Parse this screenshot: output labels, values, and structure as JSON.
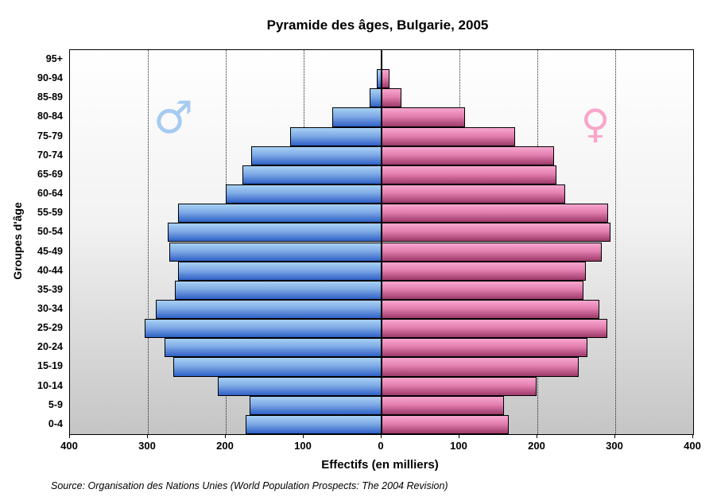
{
  "title": "Pyramide des âges, Bulgarie, 2005",
  "source": "Source: Organisation des Nations Unies (World Population Prospects: The 2004 Revision)",
  "chart_data": {
    "type": "bar",
    "subtype": "population-pyramid",
    "title": "Pyramide des âges, Bulgarie, 2005",
    "xlabel": "Effectifs (en milliers)",
    "ylabel": "Groupes d'âge",
    "categories_top_to_bottom": [
      "95+",
      "90-94",
      "85-89",
      "80-84",
      "75-79",
      "70-74",
      "65-69",
      "60-64",
      "55-59",
      "50-54",
      "45-49",
      "40-44",
      "35-39",
      "30-34",
      "25-29",
      "20-24",
      "15-19",
      "10-14",
      "5-9",
      "0-4"
    ],
    "series": [
      {
        "name": "male",
        "side": "left",
        "symbol": "♂",
        "values": [
          1,
          6,
          15,
          63,
          117,
          167,
          179,
          200,
          261,
          274,
          272,
          261,
          265,
          290,
          304,
          279,
          267,
          210,
          169,
          175
        ]
      },
      {
        "name": "female",
        "side": "right",
        "symbol": "♀",
        "values": [
          2,
          10,
          26,
          107,
          171,
          221,
          224,
          236,
          291,
          294,
          283,
          262,
          259,
          280,
          290,
          264,
          253,
          199,
          157,
          163
        ]
      }
    ],
    "x_tick_labels": [
      "400",
      "300",
      "200",
      "100",
      "0",
      "100",
      "200",
      "300",
      "400"
    ],
    "xlim_each_side": 400,
    "gridline_every": 100,
    "grid": true,
    "legend_position": "symbols-in-plot"
  },
  "colors": {
    "male_bar_top": "#a8d1f4",
    "male_bar_bottom": "#2e61c6",
    "female_bar_top": "#f7a7d0",
    "female_bar_bottom": "#9e3a6b",
    "male_symbol": "#a6cbf2",
    "female_symbol": "#f9a6ca",
    "plot_bg_top": "#ffffff",
    "plot_bg_bottom": "#c5c5c5",
    "bar_border": "#000000"
  }
}
